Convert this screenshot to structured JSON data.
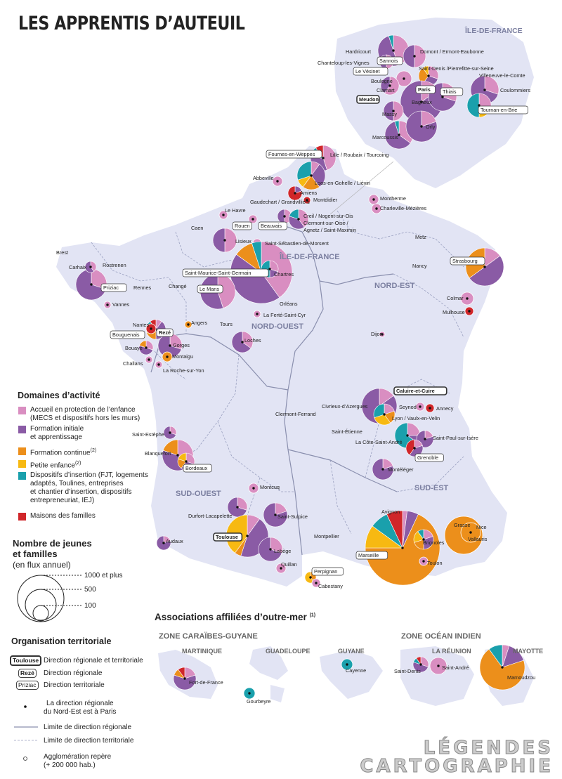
{
  "title": "LES APPRENTIS D’AUTEUIL",
  "colors": {
    "protection": "#d98ec1",
    "formation_initiale": "#8a5ba5",
    "formation_continue": "#ec8f1b",
    "petite_enfance": "#f7b912",
    "insertion": "#1aa0ac",
    "familles": "#d0262a",
    "land": "#e2e4f4",
    "border": "#9a9fbf"
  },
  "legend": {
    "domaines_title": "Domaines d’activité",
    "domaines": [
      {
        "key": "protection",
        "label1": "Accueil en protection de l’enfance",
        "label2": "(MECS et dispositifs hors les murs)"
      },
      {
        "key": "formation_initiale",
        "label1": "Formation initiale",
        "label2": "et apprentissage"
      },
      {
        "key": "formation_continue",
        "label1": "Formation continue",
        "note": "(2)"
      },
      {
        "key": "petite_enfance",
        "label1": "Petite enfance",
        "note": "(2)"
      },
      {
        "key": "insertion",
        "label1": "Dispositifs d’insertion (FJT, logements",
        "label2": "adaptés, Toulines, entreprises",
        "label3": "et chantier d’insertion, dispositifs",
        "label4": "entrepreneuriat, IEJ)"
      },
      {
        "key": "familles",
        "label1": "Maisons des familles"
      }
    ],
    "size_title1": "Nombre de jeunes",
    "size_title2": "et familles",
    "size_subtitle": "(en flux annuel)",
    "size_values": [
      "1000 et plus",
      "500",
      "100"
    ],
    "orga_title": "Organisation territoriale",
    "orga": {
      "dr_tag": "Toulouse",
      "dr_label": "Direction régionale et territoriale",
      "drg_tag": "Rezé",
      "drg_label": "Direction régionale",
      "dt_tag": "Priziac",
      "dt_label": "Direction territoriale",
      "ne_label1": "La direction régionale",
      "ne_label2": "du Nord-Est est à Paris",
      "limite_regionale": "Limite de direction régionale",
      "limite_territoriale": "Limite de direction territoriale",
      "agglo_label1": "Agglomération repère",
      "agglo_label2": "(+ 200 000 hab.)"
    }
  },
  "regions": [
    {
      "name": "ÎLE-DE-FRANCE"
    },
    {
      "name": "NORD-EST"
    },
    {
      "name": "NORD-OUEST"
    },
    {
      "name": "SUD-OUEST"
    },
    {
      "name": "SUD-EST"
    }
  ],
  "idf_inset_title": "ÎLE-DE-FRANCE",
  "places": [
    "Hardricourt",
    "Chanteloup-les-Vignes",
    "Sannois",
    "Domont / Ermont-Eaubonne",
    "Le Vésinet",
    "Saint-Denis /Pierrefitte-sur-Seine",
    "Villeneuve-le-Comte",
    "Boulogne",
    "Paris",
    "Coulommiers",
    "Clamart",
    "Thiais",
    "Meudon",
    "Bagneux",
    "Tournan-en-Brie",
    "Massy",
    "Orly",
    "Marcoussis",
    "Fournes-en-Weppes",
    "Lille / Roubaix / Tourcoing",
    "Abbeville",
    "Loos-en-Gohelle / Liévin",
    "Amiens",
    "Montdidier",
    "Montherme",
    "Charleville-Mézières",
    "Gaudechart / Grandvilliers",
    "Le Havre",
    "Creil / Nogent-sur-Oise / Clermont-sur-Oise / Agnetz / Saint-Maximin",
    "Caen",
    "Rouen",
    "Beauvais",
    "Lisieux",
    "Saint-Sébastien-de-Morsent",
    "Metz",
    "Brest",
    "Carhaix",
    "Rostrenen",
    "Saint-Maurice-Saint-Germain",
    "Chartres",
    "Nancy",
    "Strasbourg",
    "Priziac",
    "Rennes",
    "Changé",
    "Le Mans",
    "Orléans",
    "Colmar",
    "Vannes",
    "La Ferté-Saint-Cyr",
    "Mulhouse",
    "Angers",
    "Tours",
    "Nantes",
    "Rezé",
    "Bouguenais",
    "Loches",
    "Dijon",
    "Gorges",
    "Bouaye",
    "Montaigu",
    "Challans",
    "La Roche-sur-Yon",
    "Caluire-et-Cuire",
    "Civrieux-d’Azergues",
    "Seynod",
    "Annecy",
    "Clermont-Ferrand",
    "Lyon / Vaulx-en-Velin",
    "Saint-Étienne",
    "La Côte-Saint-André",
    "Saint-Paul-sur-Isère",
    "Saint-Estèphe",
    "Grenoble",
    "Blanquefort",
    "Bordeaux",
    "Montéléger",
    "Montcuq",
    "Durfort-Lacapelette",
    "Saint-Sulpice",
    "Avignon",
    "Grasse",
    "Nice",
    "Vallauris",
    "Audaux",
    "Toulouse",
    "Montpellier",
    "Brignoles",
    "Labège",
    "Marseille",
    "Toulon",
    "Quillan",
    "Perpignan",
    "Cabestany"
  ],
  "outremer": {
    "title": "Associations affiliées d’outre-mer",
    "title_note": "(1)",
    "zone_caraibes": "ZONE CARAÏBES-GUYANE",
    "zone_indien": "ZONE OCÉAN INDIEN",
    "territories": [
      "MARTINIQUE",
      "GUADELOUPE",
      "GUYANE",
      "LA RÉUNION",
      "MAYOTTE"
    ],
    "places": [
      "Fort-de-France",
      "Gourbeyre",
      "Cayenne",
      "Saint-Denis",
      "Saint-André",
      "Mamoudzou"
    ]
  },
  "logo": {
    "line1": "LÉGENDES",
    "line2": "CARTOGRAPHIE"
  }
}
